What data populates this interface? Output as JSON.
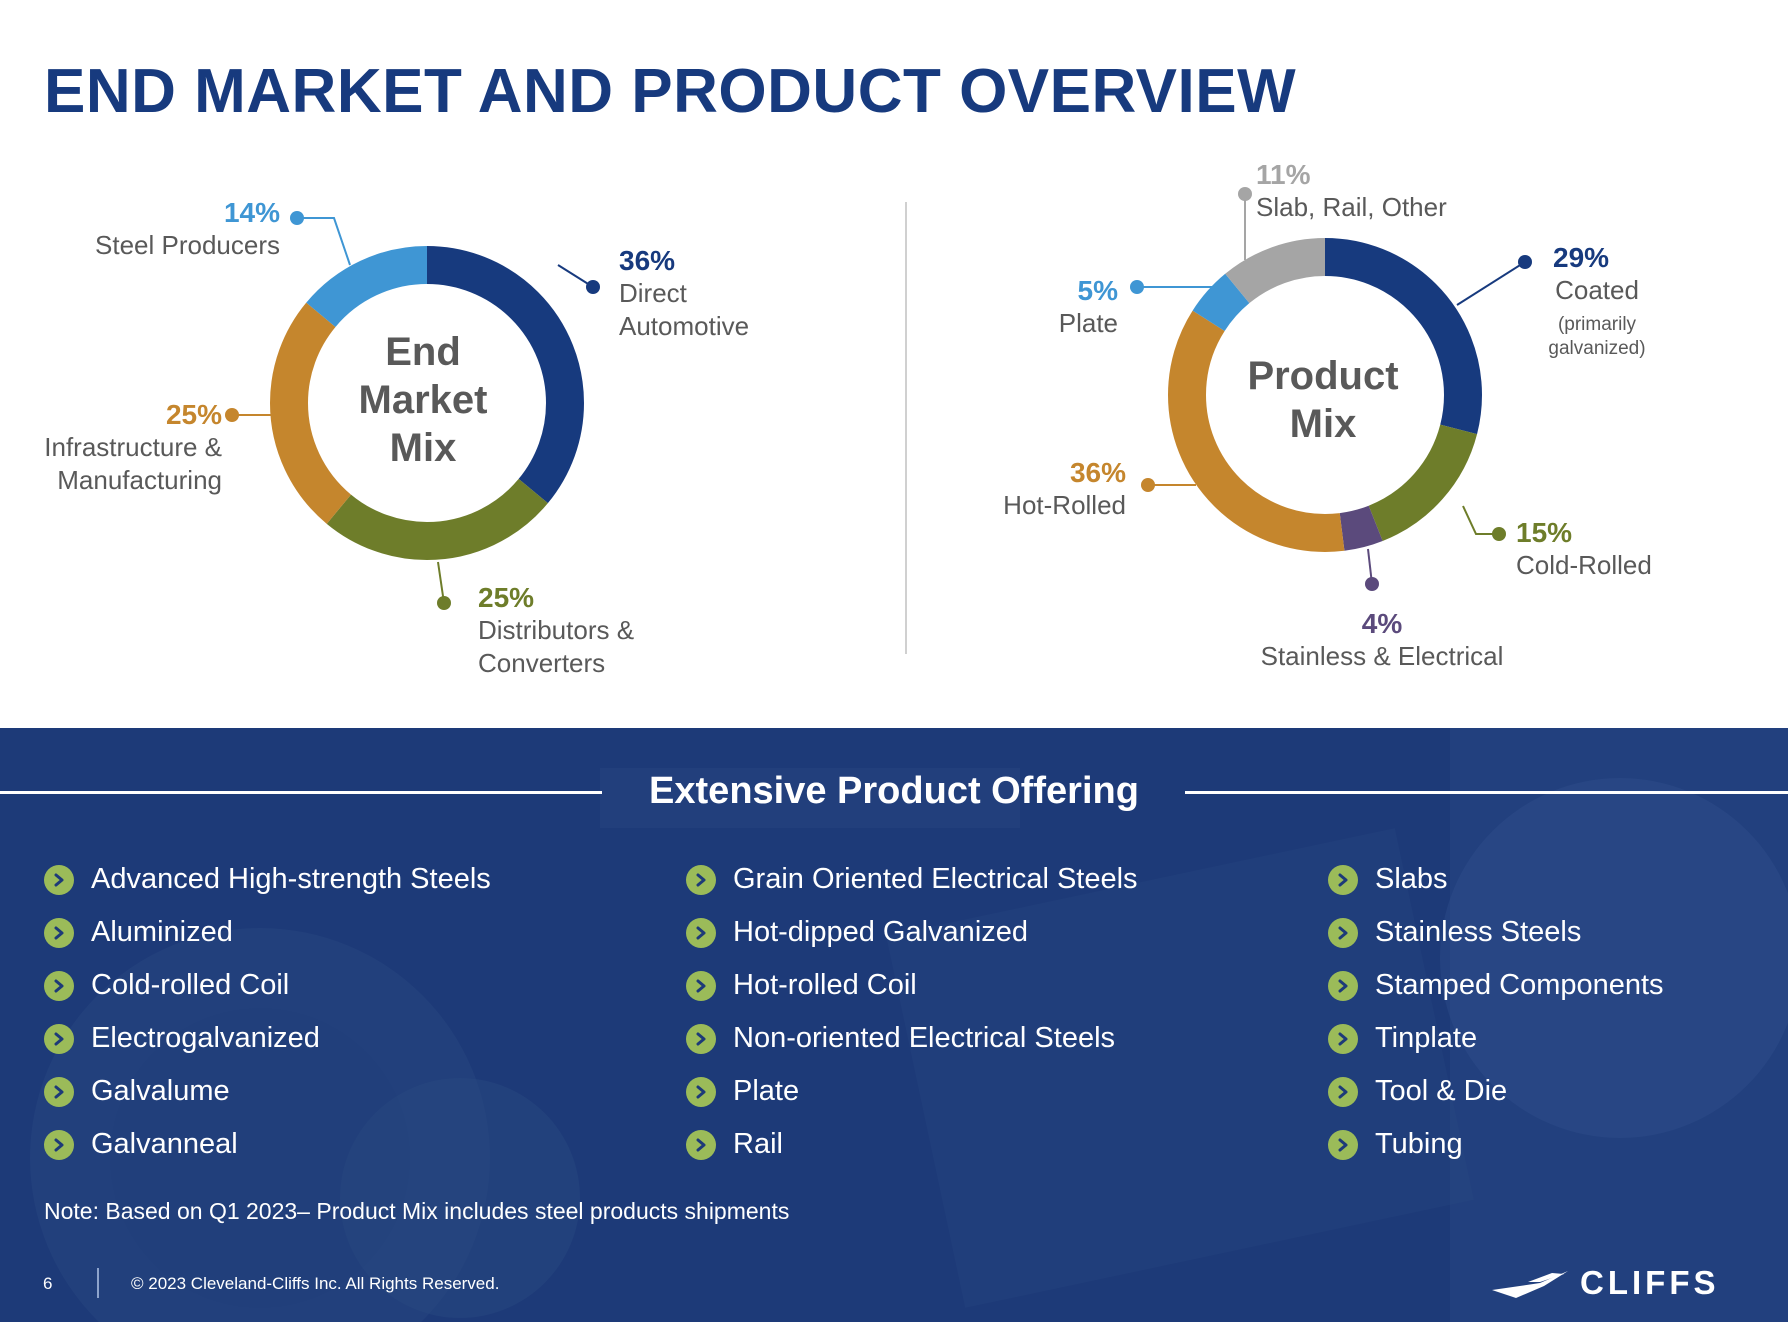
{
  "title": "END MARKET AND PRODUCT OVERVIEW",
  "chart_data": [
    {
      "type": "pie",
      "variant": "donut",
      "title": "End Market Mix",
      "center_label": [
        "End",
        "Market",
        "Mix"
      ],
      "slices": [
        {
          "label": "Direct Automotive",
          "value": 36,
          "pct_text": "36%",
          "label_lines": [
            "Direct",
            "Automotive"
          ],
          "color": "#173a7e"
        },
        {
          "label": "Distributors & Converters",
          "value": 25,
          "pct_text": "25%",
          "label_lines": [
            "Distributors &",
            "Converters"
          ],
          "color": "#6e7d2a"
        },
        {
          "label": "Infrastructure & Manufacturing",
          "value": 25,
          "pct_text": "25%",
          "label_lines": [
            "Infrastructure &",
            "Manufacturing"
          ],
          "color": "#c5862d"
        },
        {
          "label": "Steel Producers",
          "value": 14,
          "pct_text": "14%",
          "label_lines": [
            "Steel Producers"
          ],
          "color": "#3f96d4"
        }
      ]
    },
    {
      "type": "pie",
      "variant": "donut",
      "title": "Product Mix",
      "center_label": [
        "Product",
        "Mix"
      ],
      "slices": [
        {
          "label": "Coated",
          "value": 29,
          "pct_text": "29%",
          "label_lines": [
            "Coated"
          ],
          "sublabel_lines": [
            "(primarily",
            "galvanized)"
          ],
          "color": "#173a7e"
        },
        {
          "label": "Cold-Rolled",
          "value": 15,
          "pct_text": "15%",
          "label_lines": [
            "Cold-Rolled"
          ],
          "color": "#6e7d2a"
        },
        {
          "label": "Stainless & Electrical",
          "value": 4,
          "pct_text": "4%",
          "label_lines": [
            "Stainless & Electrical"
          ],
          "color": "#5b4a7c"
        },
        {
          "label": "Hot-Rolled",
          "value": 36,
          "pct_text": "36%",
          "label_lines": [
            "Hot-Rolled"
          ],
          "color": "#c5862d"
        },
        {
          "label": "Plate",
          "value": 5,
          "pct_text": "5%",
          "label_lines": [
            "Plate"
          ],
          "color": "#3f96d4"
        },
        {
          "label": "Slab, Rail, Other",
          "value": 11,
          "pct_text": "11%",
          "label_lines": [
            "Slab, Rail, Other"
          ],
          "color": "#a5a5a5"
        }
      ]
    }
  ],
  "offering": {
    "title": "Extensive Product Offering",
    "columns": [
      [
        "Advanced High-strength Steels",
        "Aluminized",
        "Cold-rolled Coil",
        "Electrogalvanized",
        "Galvalume",
        "Galvanneal"
      ],
      [
        "Grain Oriented Electrical Steels",
        "Hot-dipped Galvanized",
        "Hot-rolled Coil",
        "Non-oriented Electrical Steels",
        "Plate",
        "Rail"
      ],
      [
        "Slabs",
        "Stainless Steels",
        "Stamped Components",
        "Tinplate",
        "Tool & Die",
        "Tubing"
      ]
    ]
  },
  "note": "Note: Based on Q1 2023– Product Mix includes steel products shipments",
  "footer": {
    "page_number": "6",
    "copyright": "© 2023 Cleveland-Cliffs Inc. All Rights Reserved.",
    "logo_text": "CLIFFS"
  },
  "colors": {
    "title": "#173a7e",
    "navy": "#173a7e",
    "olive": "#6e7d2a",
    "orange": "#c5862d",
    "light_blue": "#3f96d4",
    "gray": "#a5a5a5",
    "purple": "#5b4a7c",
    "bottom_bg": "#1d3a78",
    "bullet": "#9bbb59"
  }
}
